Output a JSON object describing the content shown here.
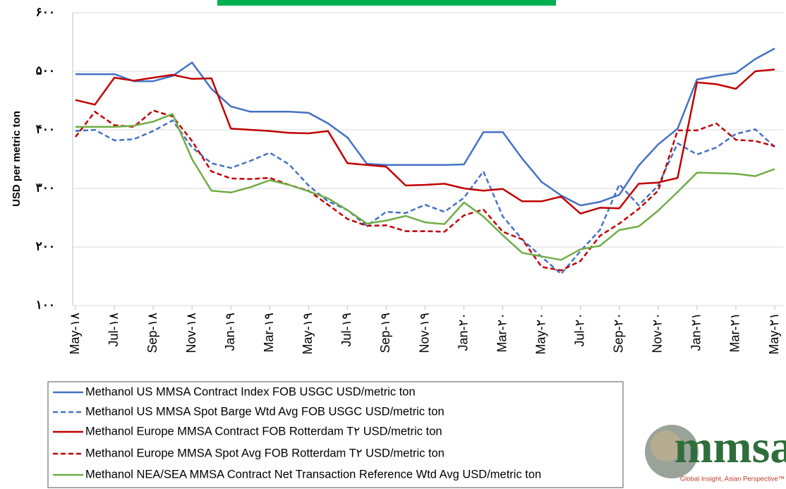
{
  "chart_data": {
    "type": "line",
    "ylabel": "USD per metric ton",
    "categories": [
      "May-۱۸",
      null,
      "Jul-۱۸",
      null,
      "Sep-۱۸",
      null,
      "Nov-۱۸",
      null,
      "Jan-۱۹",
      null,
      "Mar-۱۹",
      null,
      "May-۱۹",
      null,
      "Jul-۱۹",
      null,
      "Sep-۱۹",
      null,
      "Nov-۱۹",
      null,
      "Jan-۲۰",
      null,
      "Mar-۲۰",
      null,
      "May-۲۰",
      null,
      "Jul-۲۰",
      null,
      "Sep-۲۰",
      null,
      "Nov-۲۰",
      null,
      "Jan-۲۱",
      null,
      "Mar-۲۱",
      null,
      "May-۲۱"
    ],
    "ylim": [
      100,
      600
    ],
    "yticks": [
      {
        "value": 100,
        "label": "۱۰۰"
      },
      {
        "value": 200,
        "label": "۲۰۰"
      },
      {
        "value": 300,
        "label": "۳۰۰"
      },
      {
        "value": 400,
        "label": "۴۰۰"
      },
      {
        "value": 500,
        "label": "۵۰۰"
      },
      {
        "value": 600,
        "label": "۶۰۰"
      }
    ],
    "grid": true,
    "series": [
      {
        "name": "Methanol US MMSA Contract Index FOB USGC USD/metric ton",
        "color": "#4472c4",
        "style": "solid",
        "values": [
          495,
          495,
          495,
          483,
          483,
          492,
          515,
          470,
          440,
          431,
          431,
          431,
          429,
          411,
          387,
          342,
          340,
          340,
          340,
          340,
          341,
          396,
          396,
          351,
          311,
          288,
          271,
          277,
          289,
          339,
          375,
          402,
          486,
          492,
          497,
          521,
          539
        ]
      },
      {
        "name": "Methanol US MMSA Spot Barge Wtd Avg FOB USGC USD/metric ton",
        "color": "#4472c4",
        "style": "dashed",
        "values": [
          398,
          400,
          382,
          384,
          398,
          416,
          370,
          343,
          335,
          347,
          361,
          341,
          305,
          278,
          263,
          236,
          260,
          258,
          272,
          260,
          284,
          329,
          252,
          213,
          183,
          154,
          193,
          229,
          307,
          271,
          305,
          377,
          358,
          370,
          393,
          401,
          371
        ]
      },
      {
        "name": "Methanol Europe MMSA Contract FOB Rotterdam T۲ USD/metric ton",
        "color": "#c00000",
        "style": "solid",
        "values": [
          451,
          443,
          489,
          484,
          489,
          494,
          487,
          488,
          402,
          400,
          398,
          395,
          394,
          398,
          343,
          340,
          337,
          305,
          306,
          308,
          300,
          296,
          299,
          278,
          278,
          286,
          257,
          267,
          266,
          308,
          310,
          318,
          481,
          478,
          470,
          500,
          503
        ]
      },
      {
        "name": "Methanol Europe MMSA Spot Avg FOB Rotterdam T۲ USD/metric ton",
        "color": "#c00000",
        "style": "dashed",
        "values": [
          388,
          431,
          408,
          405,
          433,
          423,
          381,
          329,
          317,
          316,
          318,
          306,
          296,
          272,
          248,
          236,
          237,
          227,
          227,
          226,
          254,
          264,
          226,
          213,
          166,
          160,
          176,
          219,
          240,
          265,
          296,
          399,
          399,
          411,
          383,
          381,
          372
        ]
      },
      {
        "name": "Methanol NEA/SEA MMSA Contract Net Transaction Reference Wtd Avg USD/metric ton",
        "color": "#70ad47",
        "style": "solid",
        "values": [
          405,
          405,
          405,
          407,
          414,
          427,
          350,
          296,
          293,
          302,
          314,
          306,
          295,
          283,
          263,
          240,
          245,
          253,
          242,
          239,
          276,
          252,
          220,
          190,
          184,
          178,
          196,
          202,
          229,
          235,
          262,
          294,
          327,
          326,
          325,
          321,
          333
        ]
      }
    ]
  },
  "logo": {
    "name": "mmsa",
    "tagline": "Global Insight, Asian Perspective™"
  }
}
